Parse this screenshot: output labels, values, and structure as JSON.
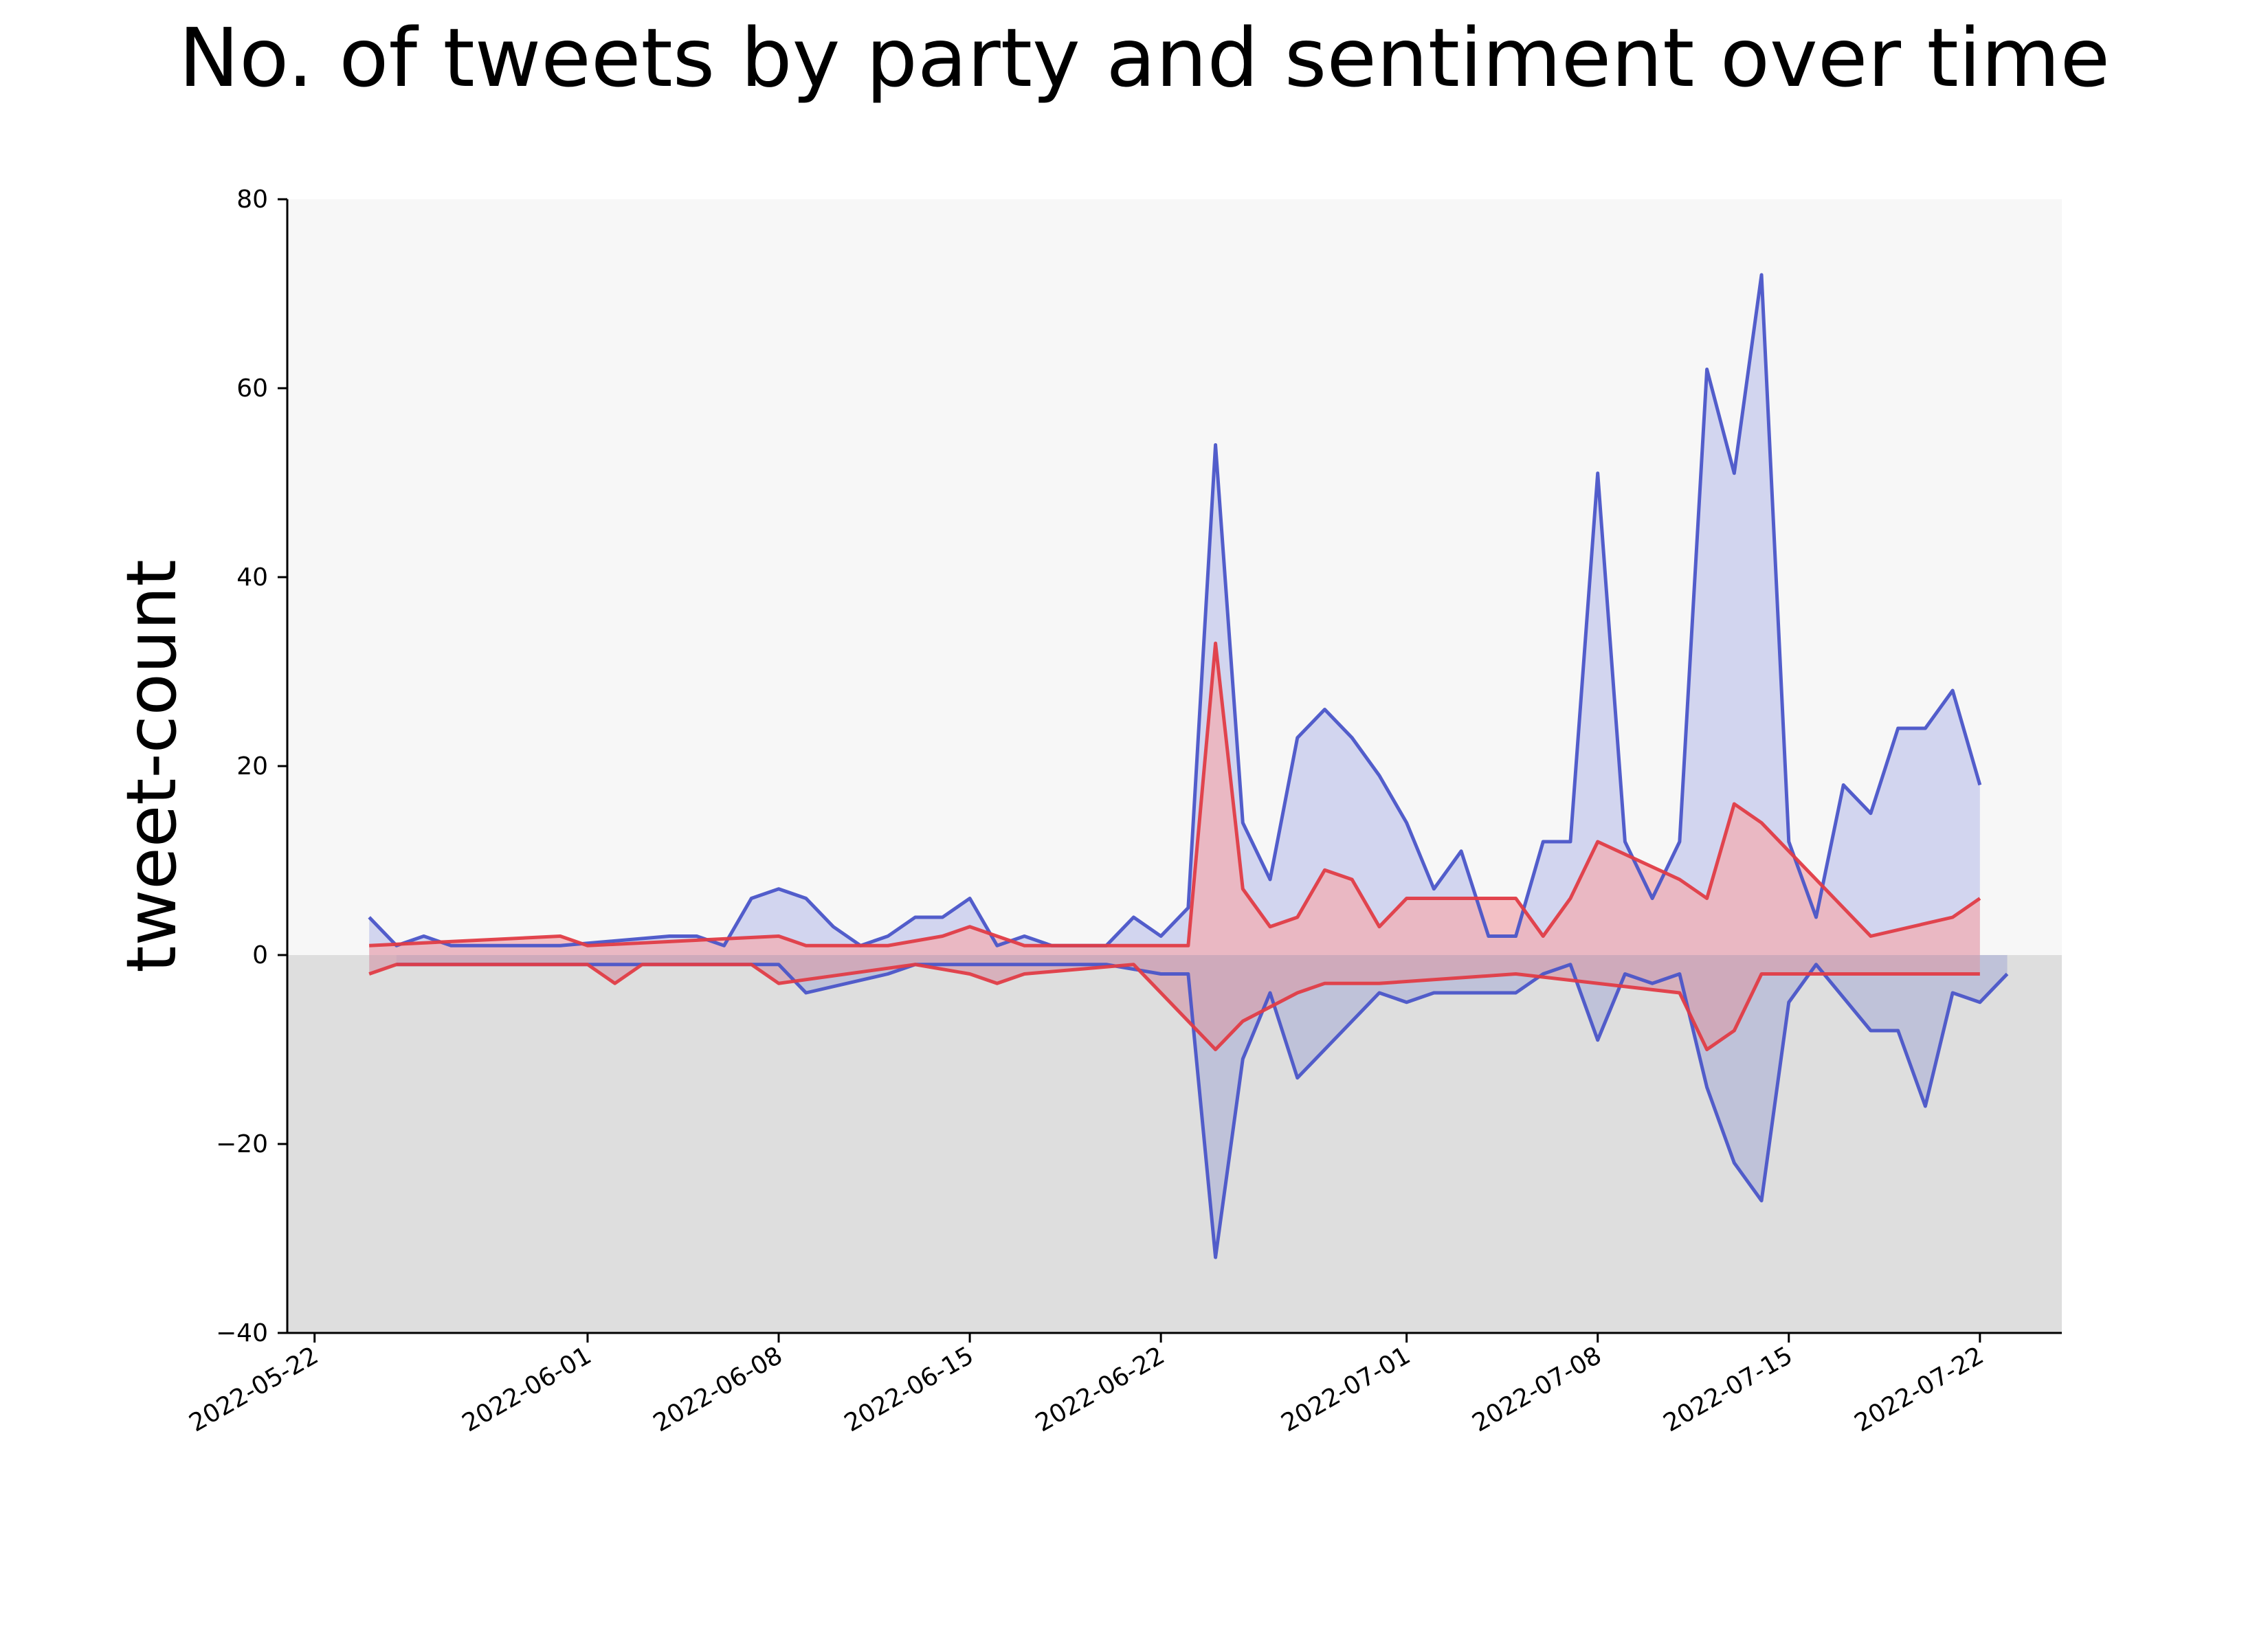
{
  "chart_data": {
    "type": "area",
    "title": "No. of tweets by party and sentiment over time",
    "ylabel": "tweet-count",
    "xlabel": "",
    "xlim": [
      "2022-05-21",
      "2022-07-25"
    ],
    "ylim": [
      -40,
      80
    ],
    "y_ticks": [
      -40,
      -20,
      0,
      20,
      40,
      60,
      80
    ],
    "y_tick_labels": [
      "−40",
      "−20",
      "0",
      "20",
      "40",
      "60",
      "80"
    ],
    "x_ticks": [
      "2022-05-22",
      "2022-06-01",
      "2022-06-08",
      "2022-06-15",
      "2022-06-22",
      "2022-07-01",
      "2022-07-08",
      "2022-07-15",
      "2022-07-22"
    ],
    "background": {
      "positive_region": "#f7f7f7",
      "negative_region": "#dedede"
    },
    "grid": false,
    "legend": false,
    "series": [
      {
        "color": "#4a55c8",
        "fill": "#c6c9ec",
        "sentiment": "positive",
        "x": [
          "2022-05-24",
          "2022-05-25",
          "2022-05-26",
          "2022-05-27",
          "2022-05-31",
          "2022-06-04",
          "2022-06-05",
          "2022-06-06",
          "2022-06-07",
          "2022-06-08",
          "2022-06-09",
          "2022-06-10",
          "2022-06-11",
          "2022-06-12",
          "2022-06-13",
          "2022-06-14",
          "2022-06-15",
          "2022-06-16",
          "2022-06-17",
          "2022-06-18",
          "2022-06-20",
          "2022-06-21",
          "2022-06-22",
          "2022-06-23",
          "2022-06-24",
          "2022-06-25",
          "2022-06-26",
          "2022-06-27",
          "2022-06-28",
          "2022-06-29",
          "2022-06-30",
          "2022-07-01",
          "2022-07-02",
          "2022-07-03",
          "2022-07-04",
          "2022-07-05",
          "2022-07-06",
          "2022-07-07",
          "2022-07-08",
          "2022-07-09",
          "2022-07-10",
          "2022-07-11",
          "2022-07-12",
          "2022-07-13",
          "2022-07-14",
          "2022-07-15",
          "2022-07-16",
          "2022-07-17",
          "2022-07-18",
          "2022-07-19",
          "2022-07-20",
          "2022-07-21",
          "2022-07-22"
        ],
        "y": [
          4,
          1,
          2,
          1,
          1,
          2,
          2,
          1,
          6,
          7,
          6,
          3,
          1,
          2,
          4,
          4,
          6,
          1,
          2,
          1,
          1,
          4,
          2,
          5,
          54,
          14,
          8,
          23,
          26,
          23,
          19,
          14,
          7,
          11,
          2,
          2,
          12,
          12,
          51,
          12,
          6,
          12,
          62,
          51,
          72,
          12,
          4,
          18,
          15,
          24,
          24,
          28,
          18
        ]
      },
      {
        "color": "#4a55c8",
        "fill": "#b4b8d7",
        "sentiment": "negative",
        "x": [
          "2022-05-25",
          "2022-06-08",
          "2022-06-09",
          "2022-06-12",
          "2022-06-13",
          "2022-06-20",
          "2022-06-22",
          "2022-06-23",
          "2022-06-24",
          "2022-06-25",
          "2022-06-26",
          "2022-06-27",
          "2022-06-30",
          "2022-07-01",
          "2022-07-02",
          "2022-07-05",
          "2022-07-06",
          "2022-07-07",
          "2022-07-08",
          "2022-07-09",
          "2022-07-10",
          "2022-07-11",
          "2022-07-12",
          "2022-07-13",
          "2022-07-14",
          "2022-07-15",
          "2022-07-16",
          "2022-07-18",
          "2022-07-19",
          "2022-07-20",
          "2022-07-21",
          "2022-07-22",
          "2022-07-23"
        ],
        "y": [
          -1,
          -1,
          -4,
          -2,
          -1,
          -1,
          -2,
          -2,
          -32,
          -11,
          -4,
          -13,
          -4,
          -5,
          -4,
          -4,
          -2,
          -1,
          -9,
          -2,
          -3,
          -2,
          -14,
          -22,
          -26,
          -5,
          -1,
          -8,
          -8,
          -16,
          -4,
          -5,
          -2
        ]
      },
      {
        "color": "#e03c46",
        "fill": "#f2aeb4",
        "sentiment": "positive",
        "x": [
          "2022-05-24",
          "2022-05-31",
          "2022-06-01",
          "2022-06-08",
          "2022-06-09",
          "2022-06-12",
          "2022-06-14",
          "2022-06-15",
          "2022-06-16",
          "2022-06-17",
          "2022-06-22",
          "2022-06-23",
          "2022-06-24",
          "2022-06-25",
          "2022-06-26",
          "2022-06-27",
          "2022-06-28",
          "2022-06-29",
          "2022-06-30",
          "2022-07-01",
          "2022-07-05",
          "2022-07-06",
          "2022-07-07",
          "2022-07-08",
          "2022-07-11",
          "2022-07-12",
          "2022-07-13",
          "2022-07-14",
          "2022-07-16",
          "2022-07-18",
          "2022-07-21",
          "2022-07-22"
        ],
        "y": [
          1,
          2,
          1,
          2,
          1,
          1,
          2,
          3,
          2,
          1,
          1,
          1,
          33,
          7,
          3,
          4,
          9,
          8,
          3,
          6,
          6,
          2,
          6,
          12,
          8,
          6,
          16,
          14,
          8,
          2,
          4,
          6
        ]
      },
      {
        "color": "#e03c46",
        "fill": "#d4a2b0",
        "sentiment": "negative",
        "x": [
          "2022-05-24",
          "2022-05-25",
          "2022-06-01",
          "2022-06-02",
          "2022-06-03",
          "2022-06-07",
          "2022-06-08",
          "2022-06-13",
          "2022-06-15",
          "2022-06-16",
          "2022-06-17",
          "2022-06-21",
          "2022-06-24",
          "2022-06-25",
          "2022-06-27",
          "2022-06-28",
          "2022-06-30",
          "2022-07-05",
          "2022-07-11",
          "2022-07-12",
          "2022-07-13",
          "2022-07-14",
          "2022-07-19",
          "2022-07-22"
        ],
        "y": [
          -2,
          -1,
          -1,
          -3,
          -1,
          -1,
          -3,
          -1,
          -2,
          -3,
          -2,
          -1,
          -10,
          -7,
          -4,
          -3,
          -3,
          -2,
          -4,
          -10,
          -8,
          -2,
          -2,
          -2
        ]
      }
    ]
  }
}
